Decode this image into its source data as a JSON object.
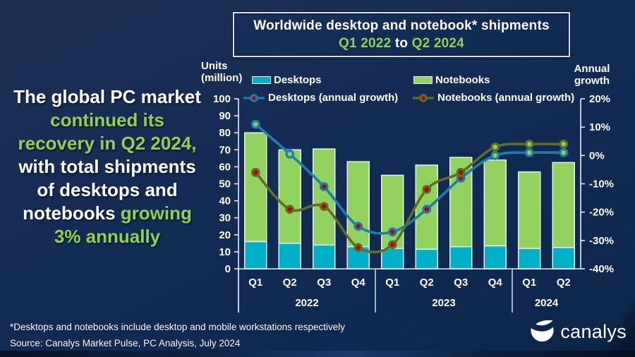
{
  "slide": {
    "headline_lines": [
      [
        {
          "t": "The global PC market",
          "c": "white"
        }
      ],
      [
        {
          "t": "continued its",
          "c": "green"
        }
      ],
      [
        {
          "t": "recovery in Q2 2024,",
          "c": "green"
        }
      ],
      [
        {
          "t": "with total shipments",
          "c": "white"
        }
      ],
      [
        {
          "t": "of desktops and",
          "c": "white"
        }
      ],
      [
        {
          "t": "notebooks ",
          "c": "white"
        },
        {
          "t": "growing",
          "c": "green"
        }
      ],
      [
        {
          "t": "3% annually",
          "c": "green"
        }
      ]
    ],
    "title_line1": [
      {
        "t": "Worldwide desktop and notebook* shipments",
        "c": "white"
      }
    ],
    "title_line2": [
      {
        "t": "Q1 2022",
        "c": "green"
      },
      {
        "t": " to ",
        "c": "white"
      },
      {
        "t": "Q2 2024",
        "c": "green"
      }
    ],
    "footnote": "*Desktops and notebooks include desktop and mobile workstations respectively",
    "source": "Source: Canalys Market Pulse, PC Analysis, July 2024",
    "logo_text": "canalys"
  },
  "colors": {
    "accent_green": "#92d050",
    "desktop_bar": "#00b0c8",
    "notebook_bar": "#92d35f",
    "desktop_line": "#1b7fae",
    "notebook_line": "#5f6e26",
    "marker_negative": "#c00000",
    "marker_positive": "#92d050",
    "bar_border": "#e9edf6",
    "axis": "#e9edf6"
  },
  "chart_data": {
    "type": "bar",
    "subtype": "stacked bars with annual-growth lines",
    "title": "Worldwide desktop and notebook* shipments Q1 2022 to Q2 2024",
    "categories": [
      "Q1",
      "Q2",
      "Q3",
      "Q4",
      "Q1",
      "Q2",
      "Q3",
      "Q4",
      "Q1",
      "Q2"
    ],
    "year_groups": [
      {
        "label": "2022",
        "span": 4
      },
      {
        "label": "2023",
        "span": 4
      },
      {
        "label": "2024",
        "span": 2
      }
    ],
    "left_axis": {
      "label": "Units (million)",
      "label_lines": [
        "Units",
        "(million)"
      ],
      "min": 0,
      "max": 100,
      "step": 10
    },
    "right_axis": {
      "label": "Annual growth",
      "label_lines": [
        "Annual",
        "growth"
      ],
      "min": -40,
      "max": 20,
      "step": 10,
      "suffix": "%"
    },
    "bar_series": [
      {
        "name": "Desktops",
        "values": [
          16,
          15,
          14,
          13,
          12,
          11.5,
          13,
          13.5,
          12,
          12.5
        ]
      },
      {
        "name": "Notebooks",
        "values": [
          64,
          55,
          56.5,
          50,
          43,
          49.5,
          52.5,
          50.5,
          45,
          50
        ]
      }
    ],
    "line_series": [
      {
        "name": "Desktops (annual growth)",
        "values": [
          11,
          0.5,
          -11,
          -25,
          -27,
          -19,
          -8,
          0,
          1,
          1
        ]
      },
      {
        "name": "Notebooks (annual growth)",
        "values": [
          -6,
          -19,
          -18,
          -32.5,
          -31.5,
          -12,
          -6,
          3,
          4,
          4
        ]
      }
    ]
  }
}
